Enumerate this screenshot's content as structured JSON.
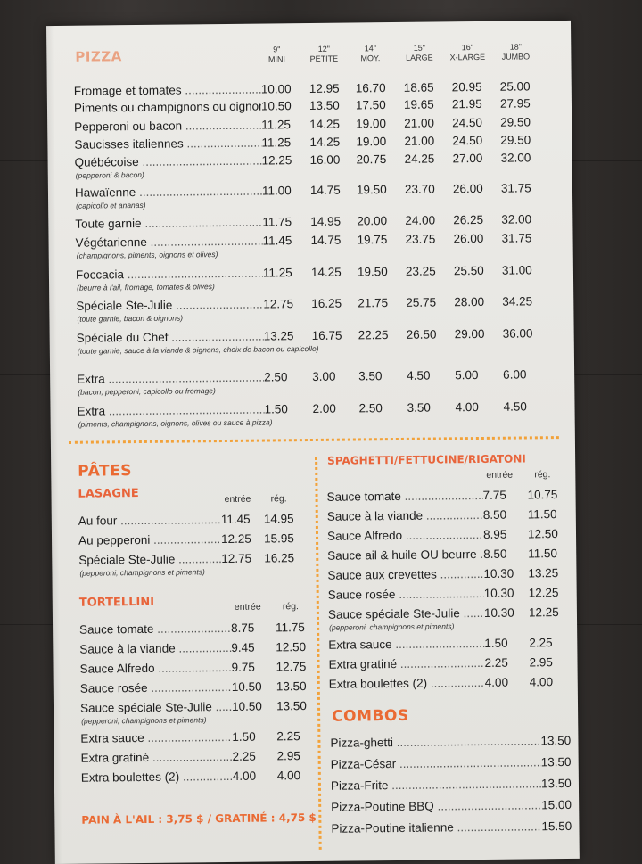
{
  "colors": {
    "accent": "#ea6a33",
    "dots": "#f2a23a",
    "paper": "#e9e8e4",
    "ink": "#1d1d1d"
  },
  "pizza": {
    "title": "PIZZA",
    "sizes": [
      {
        "size": "9\"",
        "label": "MINI"
      },
      {
        "size": "12\"",
        "label": "PETITE"
      },
      {
        "size": "14\"",
        "label": "MOY."
      },
      {
        "size": "15\"",
        "label": "LARGE"
      },
      {
        "size": "16\"",
        "label": "X-LARGE"
      },
      {
        "size": "18\"",
        "label": "JUMBO"
      }
    ],
    "items": [
      {
        "name": "Fromage et tomates",
        "prices": [
          "10.00",
          "12.95",
          "16.70",
          "18.65",
          "20.95",
          "25.00"
        ],
        "note": ""
      },
      {
        "name": "Piments ou champignons ou oignons",
        "prices": [
          "10.50",
          "13.50",
          "17.50",
          "19.65",
          "21.95",
          "27.95"
        ],
        "note": ""
      },
      {
        "name": "Pepperoni ou bacon",
        "prices": [
          "11.25",
          "14.25",
          "19.00",
          "21.00",
          "24.50",
          "29.50"
        ],
        "note": ""
      },
      {
        "name": "Saucisses italiennes",
        "prices": [
          "11.25",
          "14.25",
          "19.00",
          "21.00",
          "24.50",
          "29.50"
        ],
        "note": ""
      },
      {
        "name": "Québécoise",
        "prices": [
          "12.25",
          "16.00",
          "20.75",
          "24.25",
          "27.00",
          "32.00"
        ],
        "note": "(pepperoni & bacon)"
      },
      {
        "name": "Hawaïenne",
        "prices": [
          "11.00",
          "14.75",
          "19.50",
          "23.70",
          "26.00",
          "31.75"
        ],
        "note": "(capicollo et ananas)"
      },
      {
        "name": "Toute garnie",
        "prices": [
          "11.75",
          "14.95",
          "20.00",
          "24.00",
          "26.25",
          "32.00"
        ],
        "note": ""
      },
      {
        "name": "Végétarienne",
        "prices": [
          "11.45",
          "14.75",
          "19.75",
          "23.75",
          "26.00",
          "31.75"
        ],
        "note": "(champignons, piments, oignons et olives)"
      },
      {
        "name": "Foccacia",
        "prices": [
          "11.25",
          "14.25",
          "19.50",
          "23.25",
          "25.50",
          "31.00"
        ],
        "note": "(beurre à l'ail, fromage, tomates & olives)"
      },
      {
        "name": "Spéciale Ste-Julie",
        "prices": [
          "12.75",
          "16.25",
          "21.75",
          "25.75",
          "28.00",
          "34.25"
        ],
        "note": "(toute garnie, bacon & oignons)"
      },
      {
        "name": "Spéciale du Chef",
        "prices": [
          "13.25",
          "16.75",
          "22.25",
          "26.50",
          "29.00",
          "36.00"
        ],
        "note": "(toute garnie, sauce à la viande & oignons, choix de bacon ou capicollo)"
      },
      {
        "name": "Extra",
        "prices": [
          "2.50",
          "3.00",
          "3.50",
          "4.50",
          "5.00",
          "6.00"
        ],
        "note": "(bacon, pepperoni, capicollo ou fromage)"
      },
      {
        "name": "Extra",
        "prices": [
          "1.50",
          "2.00",
          "2.50",
          "3.50",
          "4.00",
          "4.50"
        ],
        "note": "(piments, champignons, oignons, olives ou sauce à pizza)"
      }
    ]
  },
  "pates": {
    "title": "PÂTES",
    "lasagne": {
      "title": "LASAGNE",
      "col_entree": "entrée",
      "col_reg": "rég.",
      "items": [
        {
          "name": "Au four",
          "entree": "11.45",
          "reg": "14.95",
          "note": ""
        },
        {
          "name": "Au pepperoni",
          "entree": "12.25",
          "reg": "15.95",
          "note": ""
        },
        {
          "name": "Spéciale Ste-Julie",
          "entree": "12.75",
          "reg": "16.25",
          "note": "(pepperoni, champignons et piments)"
        }
      ]
    },
    "tortellini": {
      "title": "TORTELLINI",
      "col_entree": "entrée",
      "col_reg": "rég.",
      "items": [
        {
          "name": "Sauce tomate",
          "entree": "8.75",
          "reg": "11.75",
          "note": ""
        },
        {
          "name": "Sauce à la viande",
          "entree": "9.45",
          "reg": "12.50",
          "note": ""
        },
        {
          "name": "Sauce Alfredo",
          "entree": "9.75",
          "reg": "12.75",
          "note": ""
        },
        {
          "name": "Sauce rosée",
          "entree": "10.50",
          "reg": "13.50",
          "note": ""
        },
        {
          "name": "Sauce spéciale Ste-Julie",
          "entree": "10.50",
          "reg": "13.50",
          "note": "(pepperoni, champignons et piments)"
        },
        {
          "name": "Extra sauce",
          "entree": "1.50",
          "reg": "2.25",
          "note": ""
        },
        {
          "name": "Extra gratiné",
          "entree": "2.25",
          "reg": "2.95",
          "note": ""
        },
        {
          "name": "Extra boulettes (2)",
          "entree": "4.00",
          "reg": "4.00",
          "note": ""
        }
      ]
    },
    "footer": "PAIN À L'AIL : 3,75 $  /  GRATINÉ : 4,75 $"
  },
  "spaghetti": {
    "title": "SPAGHETTI/FETTUCINE/RIGATONI",
    "col_entree": "entrée",
    "col_reg": "rég.",
    "items": [
      {
        "name": "Sauce tomate",
        "entree": "7.75",
        "reg": "10.75",
        "note": ""
      },
      {
        "name": "Sauce à la viande",
        "entree": "8.50",
        "reg": "11.50",
        "note": ""
      },
      {
        "name": "Sauce Alfredo",
        "entree": "8.95",
        "reg": "12.50",
        "note": ""
      },
      {
        "name": "Sauce ail & huile OU beurre",
        "entree": "8.50",
        "reg": "11.50",
        "note": ""
      },
      {
        "name": "Sauce aux crevettes",
        "entree": "10.30",
        "reg": "13.25",
        "note": ""
      },
      {
        "name": "Sauce rosée",
        "entree": "10.30",
        "reg": "12.25",
        "note": ""
      },
      {
        "name": "Sauce spéciale Ste-Julie",
        "entree": "10.30",
        "reg": "12.25",
        "note": "(pepperoni, champignons et piments)"
      },
      {
        "name": "Extra sauce",
        "entree": "1.50",
        "reg": "2.25",
        "note": ""
      },
      {
        "name": "Extra gratiné",
        "entree": "2.25",
        "reg": "2.95",
        "note": ""
      },
      {
        "name": "Extra boulettes (2)",
        "entree": "4.00",
        "reg": "4.00",
        "note": ""
      }
    ]
  },
  "combos": {
    "title": "COMBOS",
    "items": [
      {
        "name": "Pizza-ghetti",
        "price": "13.50"
      },
      {
        "name": "Pizza-César",
        "price": "13.50"
      },
      {
        "name": "Pizza-Frite",
        "price": "13.50"
      },
      {
        "name": "Pizza-Poutine BBQ",
        "price": "15.00"
      },
      {
        "name": "Pizza-Poutine italienne",
        "price": "15.50"
      }
    ]
  }
}
